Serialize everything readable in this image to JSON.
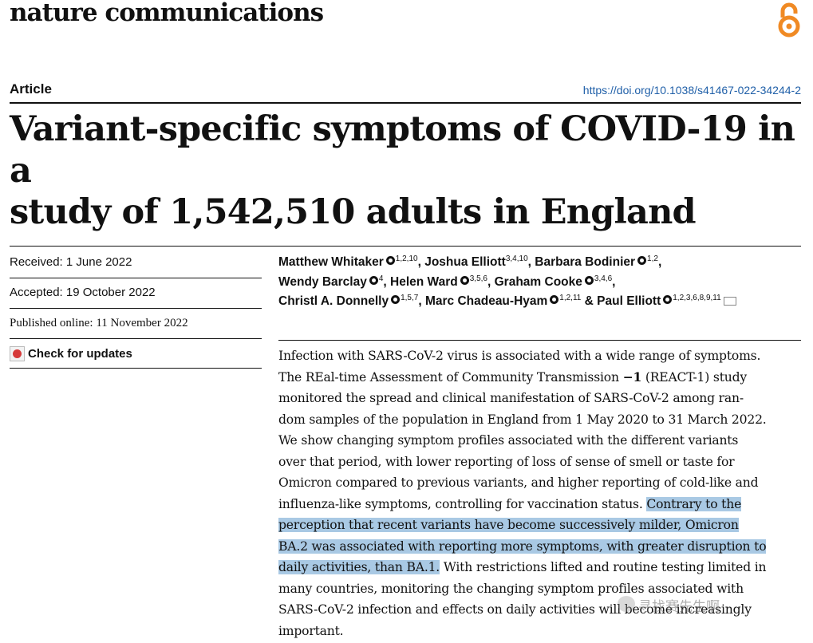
{
  "header": {
    "journal": "nature communications",
    "article_type": "Article",
    "doi": "https://doi.org/10.1038/s41467-022-34244-2",
    "oa_icon": "open-access-icon"
  },
  "title_lines": [
    "Variant-specific symptoms of COVID-19 in a",
    "study of 1,542,510 adults in England"
  ],
  "meta": {
    "received": "Received: 1 June 2022",
    "accepted": "Accepted: 19 October 2022",
    "published": "Published online: 11 November 2022",
    "check_updates": "Check for updates"
  },
  "authors": [
    {
      "name": "Matthew Whitaker",
      "sup": "1,2,10",
      "orcid": true,
      "sep": ","
    },
    {
      "name": "Joshua Elliott",
      "sup": "3,4,10",
      "orcid": false,
      "sep": ","
    },
    {
      "name": "Barbara Bodinier",
      "sup": "1,2",
      "orcid": true,
      "sep": ","
    },
    {
      "name": "Wendy Barclay",
      "sup": "4",
      "orcid": true,
      "sep": ","
    },
    {
      "name": "Helen Ward",
      "sup": "3,5,6",
      "orcid": true,
      "sep": ","
    },
    {
      "name": "Graham Cooke",
      "sup": "3,4,6",
      "orcid": true,
      "sep": ","
    },
    {
      "name": "Christl A. Donnelly",
      "sup": "1,5,7",
      "orcid": true,
      "sep": ","
    },
    {
      "name": "Marc Chadeau-Hyam",
      "sup": "1,2,11",
      "orcid": true,
      "sep": " &"
    },
    {
      "name": "Paul Elliott",
      "sup": "1,2,3,6,8,9,11",
      "orcid": true,
      "sep": ""
    }
  ],
  "abstract": {
    "lines": [
      [
        {
          "t": "Infection with SARS-CoV-2 virus is associated with a wide range of symptoms."
        }
      ],
      [
        {
          "t": "The REal-time Assessment of Community Transmission "
        },
        {
          "t": "−1",
          "b": true
        },
        {
          "t": " (REACT-1) study"
        }
      ],
      [
        {
          "t": "monitored the spread and clinical manifestation of SARS-CoV-2 among ran-"
        }
      ],
      [
        {
          "t": "dom samples of the population in England from 1 May 2020 to 31 March 2022."
        }
      ],
      [
        {
          "t": "We show changing symptom profiles associated with the different variants"
        }
      ],
      [
        {
          "t": "over that period, with lower reporting of loss of sense of smell or taste for"
        }
      ],
      [
        {
          "t": "Omicron compared to previous variants, and higher reporting of cold-like and"
        }
      ],
      [
        {
          "t": "influenza-like symptoms, controlling for vaccination status. "
        },
        {
          "t": "Contrary to the",
          "h": true
        }
      ],
      [
        {
          "t": "perception that recent variants have become successively milder, Omicron",
          "h": true
        }
      ],
      [
        {
          "t": "BA.2 was associated with reporting more symptoms, with greater disruption to",
          "h": true
        }
      ],
      [
        {
          "t": "daily activities, than BA.1.",
          "h": true
        },
        {
          "t": " With restrictions lifted and routine testing limited in"
        }
      ],
      [
        {
          "t": "many countries, monitoring the changing symptom profiles associated with"
        }
      ],
      [
        {
          "t": "SARS-CoV-2 infection and effects on daily activities will become increasingly"
        }
      ],
      [
        {
          "t": "important."
        }
      ]
    ]
  },
  "watermark": "寻找赛先生啊"
}
